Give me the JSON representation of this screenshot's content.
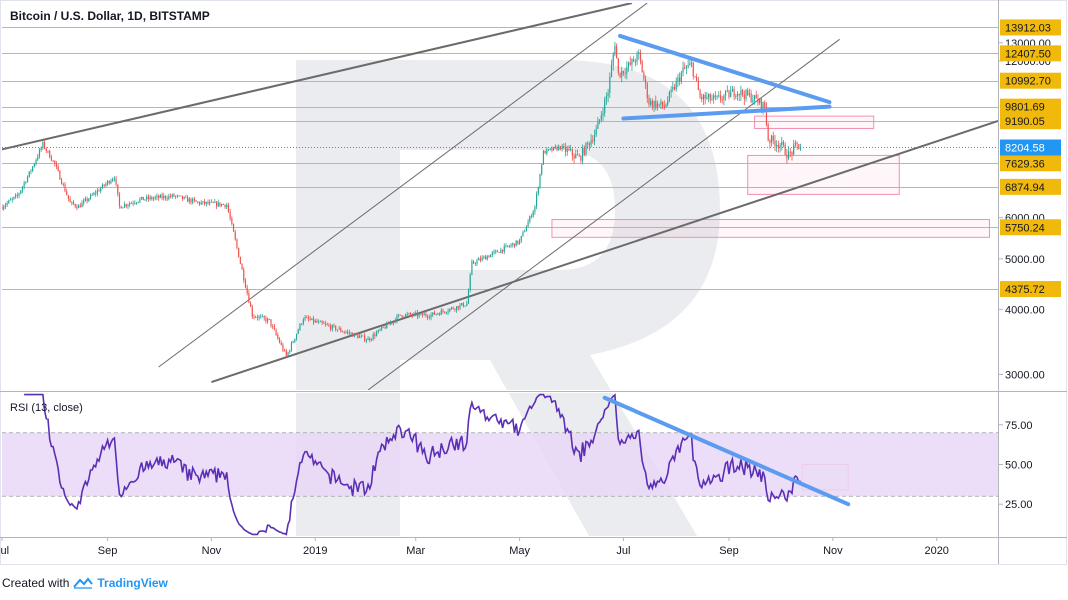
{
  "title": "Bitcoin / U.S. Dollar, 1D, BITSTAMP",
  "rsi_title": "RSI (13, close)",
  "footer": {
    "created_with": "Created with",
    "brand": "TradingView",
    "logo_icon": "tradingview-logo-icon"
  },
  "current_price": {
    "value": 8204.58,
    "label": "8204.58",
    "color": "#2196f3"
  },
  "colors": {
    "up": "#26a69a",
    "down": "#ef5350",
    "level": "#f0b90b",
    "trend": "#5b9bf0",
    "channel": "#6b6b6b",
    "rsi": "#5b2fb5",
    "rsi_band": "#e9d8f7",
    "box": "#f48fb1"
  },
  "chart_data": [
    {
      "type": "candlestick",
      "title": "Bitcoin / U.S. Dollar, 1D, BITSTAMP",
      "x_range": [
        "2018-07-01",
        "2020-02-06"
      ],
      "y_scale": "log",
      "y_range": [
        2800,
        15500
      ],
      "y_ticks": [
        3000,
        4000,
        5000,
        6000,
        12000,
        13000
      ],
      "y_tick_labels": [
        "3000.00",
        "4000.00",
        "5000.00",
        "6000.00",
        "12000.00",
        "13000.00"
      ],
      "x_ticks": [
        {
          "date": "2018-07-01",
          "label": "Jul"
        },
        {
          "date": "2018-09-01",
          "label": "Sep"
        },
        {
          "date": "2018-11-01",
          "label": "Nov"
        },
        {
          "date": "2019-01-01",
          "label": "2019"
        },
        {
          "date": "2019-03-01",
          "label": "Mar"
        },
        {
          "date": "2019-05-01",
          "label": "May"
        },
        {
          "date": "2019-07-01",
          "label": "Jul"
        },
        {
          "date": "2019-09-01",
          "label": "Sep"
        },
        {
          "date": "2019-11-01",
          "label": "Nov"
        },
        {
          "date": "2020-01-01",
          "label": "2020"
        }
      ],
      "levels": [
        13912.03,
        12407.5,
        10992.7,
        9801.69,
        9190.05,
        7629.36,
        6874.94,
        5750.24,
        4375.72
      ],
      "level_labels": [
        "13912.03",
        "12407.50",
        "10992.70",
        "9801.69",
        "9190.05",
        "7629.36",
        "6874.94",
        "5750.24",
        "4375.72"
      ],
      "price_path": [
        [
          "2018-07-01",
          6300
        ],
        [
          "2018-07-10",
          6600
        ],
        [
          "2018-07-18",
          7400
        ],
        [
          "2018-07-25",
          8300
        ],
        [
          "2018-08-01",
          7600
        ],
        [
          "2018-08-10",
          6400
        ],
        [
          "2018-08-15",
          6300
        ],
        [
          "2018-08-25",
          6700
        ],
        [
          "2018-09-05",
          7200
        ],
        [
          "2018-09-08",
          6300
        ],
        [
          "2018-09-20",
          6500
        ],
        [
          "2018-10-10",
          6600
        ],
        [
          "2018-10-25",
          6400
        ],
        [
          "2018-11-10",
          6350
        ],
        [
          "2018-11-14",
          5600
        ],
        [
          "2018-11-20",
          4600
        ],
        [
          "2018-11-25",
          3900
        ],
        [
          "2018-12-05",
          3800
        ],
        [
          "2018-12-15",
          3250
        ],
        [
          "2018-12-25",
          3850
        ],
        [
          "2019-01-10",
          3700
        ],
        [
          "2019-02-01",
          3500
        ],
        [
          "2019-02-20",
          3900
        ],
        [
          "2019-03-10",
          3900
        ],
        [
          "2019-03-31",
          4100
        ],
        [
          "2019-04-03",
          4900
        ],
        [
          "2019-04-20",
          5200
        ],
        [
          "2019-05-01",
          5400
        ],
        [
          "2019-05-10",
          6300
        ],
        [
          "2019-05-15",
          8000
        ],
        [
          "2019-05-25",
          8200
        ],
        [
          "2019-06-05",
          7800
        ],
        [
          "2019-06-15",
          8800
        ],
        [
          "2019-06-22",
          10500
        ],
        [
          "2019-06-26",
          13000
        ],
        [
          "2019-06-28",
          11300
        ],
        [
          "2019-07-05",
          11800
        ],
        [
          "2019-07-10",
          12300
        ],
        [
          "2019-07-16",
          10000
        ],
        [
          "2019-07-25",
          9800
        ],
        [
          "2019-08-05",
          11500
        ],
        [
          "2019-08-10",
          11800
        ],
        [
          "2019-08-15",
          10200
        ],
        [
          "2019-08-25",
          10100
        ],
        [
          "2019-09-05",
          10500
        ],
        [
          "2019-09-15",
          10200
        ],
        [
          "2019-09-22",
          9800
        ],
        [
          "2019-09-24",
          8500
        ],
        [
          "2019-10-01",
          8300
        ],
        [
          "2019-10-06",
          7900
        ],
        [
          "2019-10-11",
          8250
        ],
        [
          "2019-10-13",
          8204.58
        ]
      ],
      "rsi": {
        "y_range": [
          5,
          95
        ],
        "y_ticks": [
          25,
          50,
          75
        ],
        "y_tick_labels": [
          "25.00",
          "50.00",
          "75.00"
        ],
        "band": [
          30,
          70
        ]
      },
      "trend_lines": [
        {
          "name": "descending-resistance",
          "points": [
            [
              "2019-06-29",
              13400
            ],
            [
              "2019-10-30",
              10000
            ]
          ]
        },
        {
          "name": "ascending-support",
          "points": [
            [
              "2019-07-01",
              9300
            ],
            [
              "2019-10-30",
              9800
            ]
          ]
        },
        {
          "name": "rsi-descending-trend",
          "panel": "rsi",
          "points": [
            [
              "2019-06-20",
              92
            ],
            [
              "2019-11-10",
              25
            ]
          ]
        }
      ],
      "channel_lines": [
        {
          "name": "channel-top",
          "points": [
            [
              "2018-06-01",
              7700
            ],
            [
              "2019-07-06",
              15500
            ]
          ]
        },
        {
          "name": "channel-bottom",
          "points": [
            [
              "2018-11-01",
              2900
            ],
            [
              "2020-02-06",
              9200
            ]
          ]
        },
        {
          "name": "steep-channel-upper",
          "points": [
            [
              "2018-10-01",
              3100
            ],
            [
              "2019-07-15",
              15500
            ]
          ]
        },
        {
          "name": "steep-channel-lower",
          "points": [
            [
              "2019-02-01",
              2800
            ],
            [
              "2019-11-05",
              13200
            ]
          ]
        }
      ],
      "target_boxes": [
        {
          "name": "target-box-1",
          "from": "2019-09-16",
          "to": "2019-11-25",
          "high": 9400,
          "low": 8900
        },
        {
          "name": "target-box-2",
          "from": "2019-09-12",
          "to": "2019-12-10",
          "high": 7900,
          "low": 6650
        },
        {
          "name": "target-box-3",
          "from": "2019-05-20",
          "to": "2020-02-01",
          "high": 5950,
          "low": 5500
        },
        {
          "name": "rsi-target-box",
          "panel": "rsi",
          "from": "2019-10-14",
          "to": "2019-11-10",
          "high": 50,
          "low": 34
        }
      ]
    }
  ]
}
